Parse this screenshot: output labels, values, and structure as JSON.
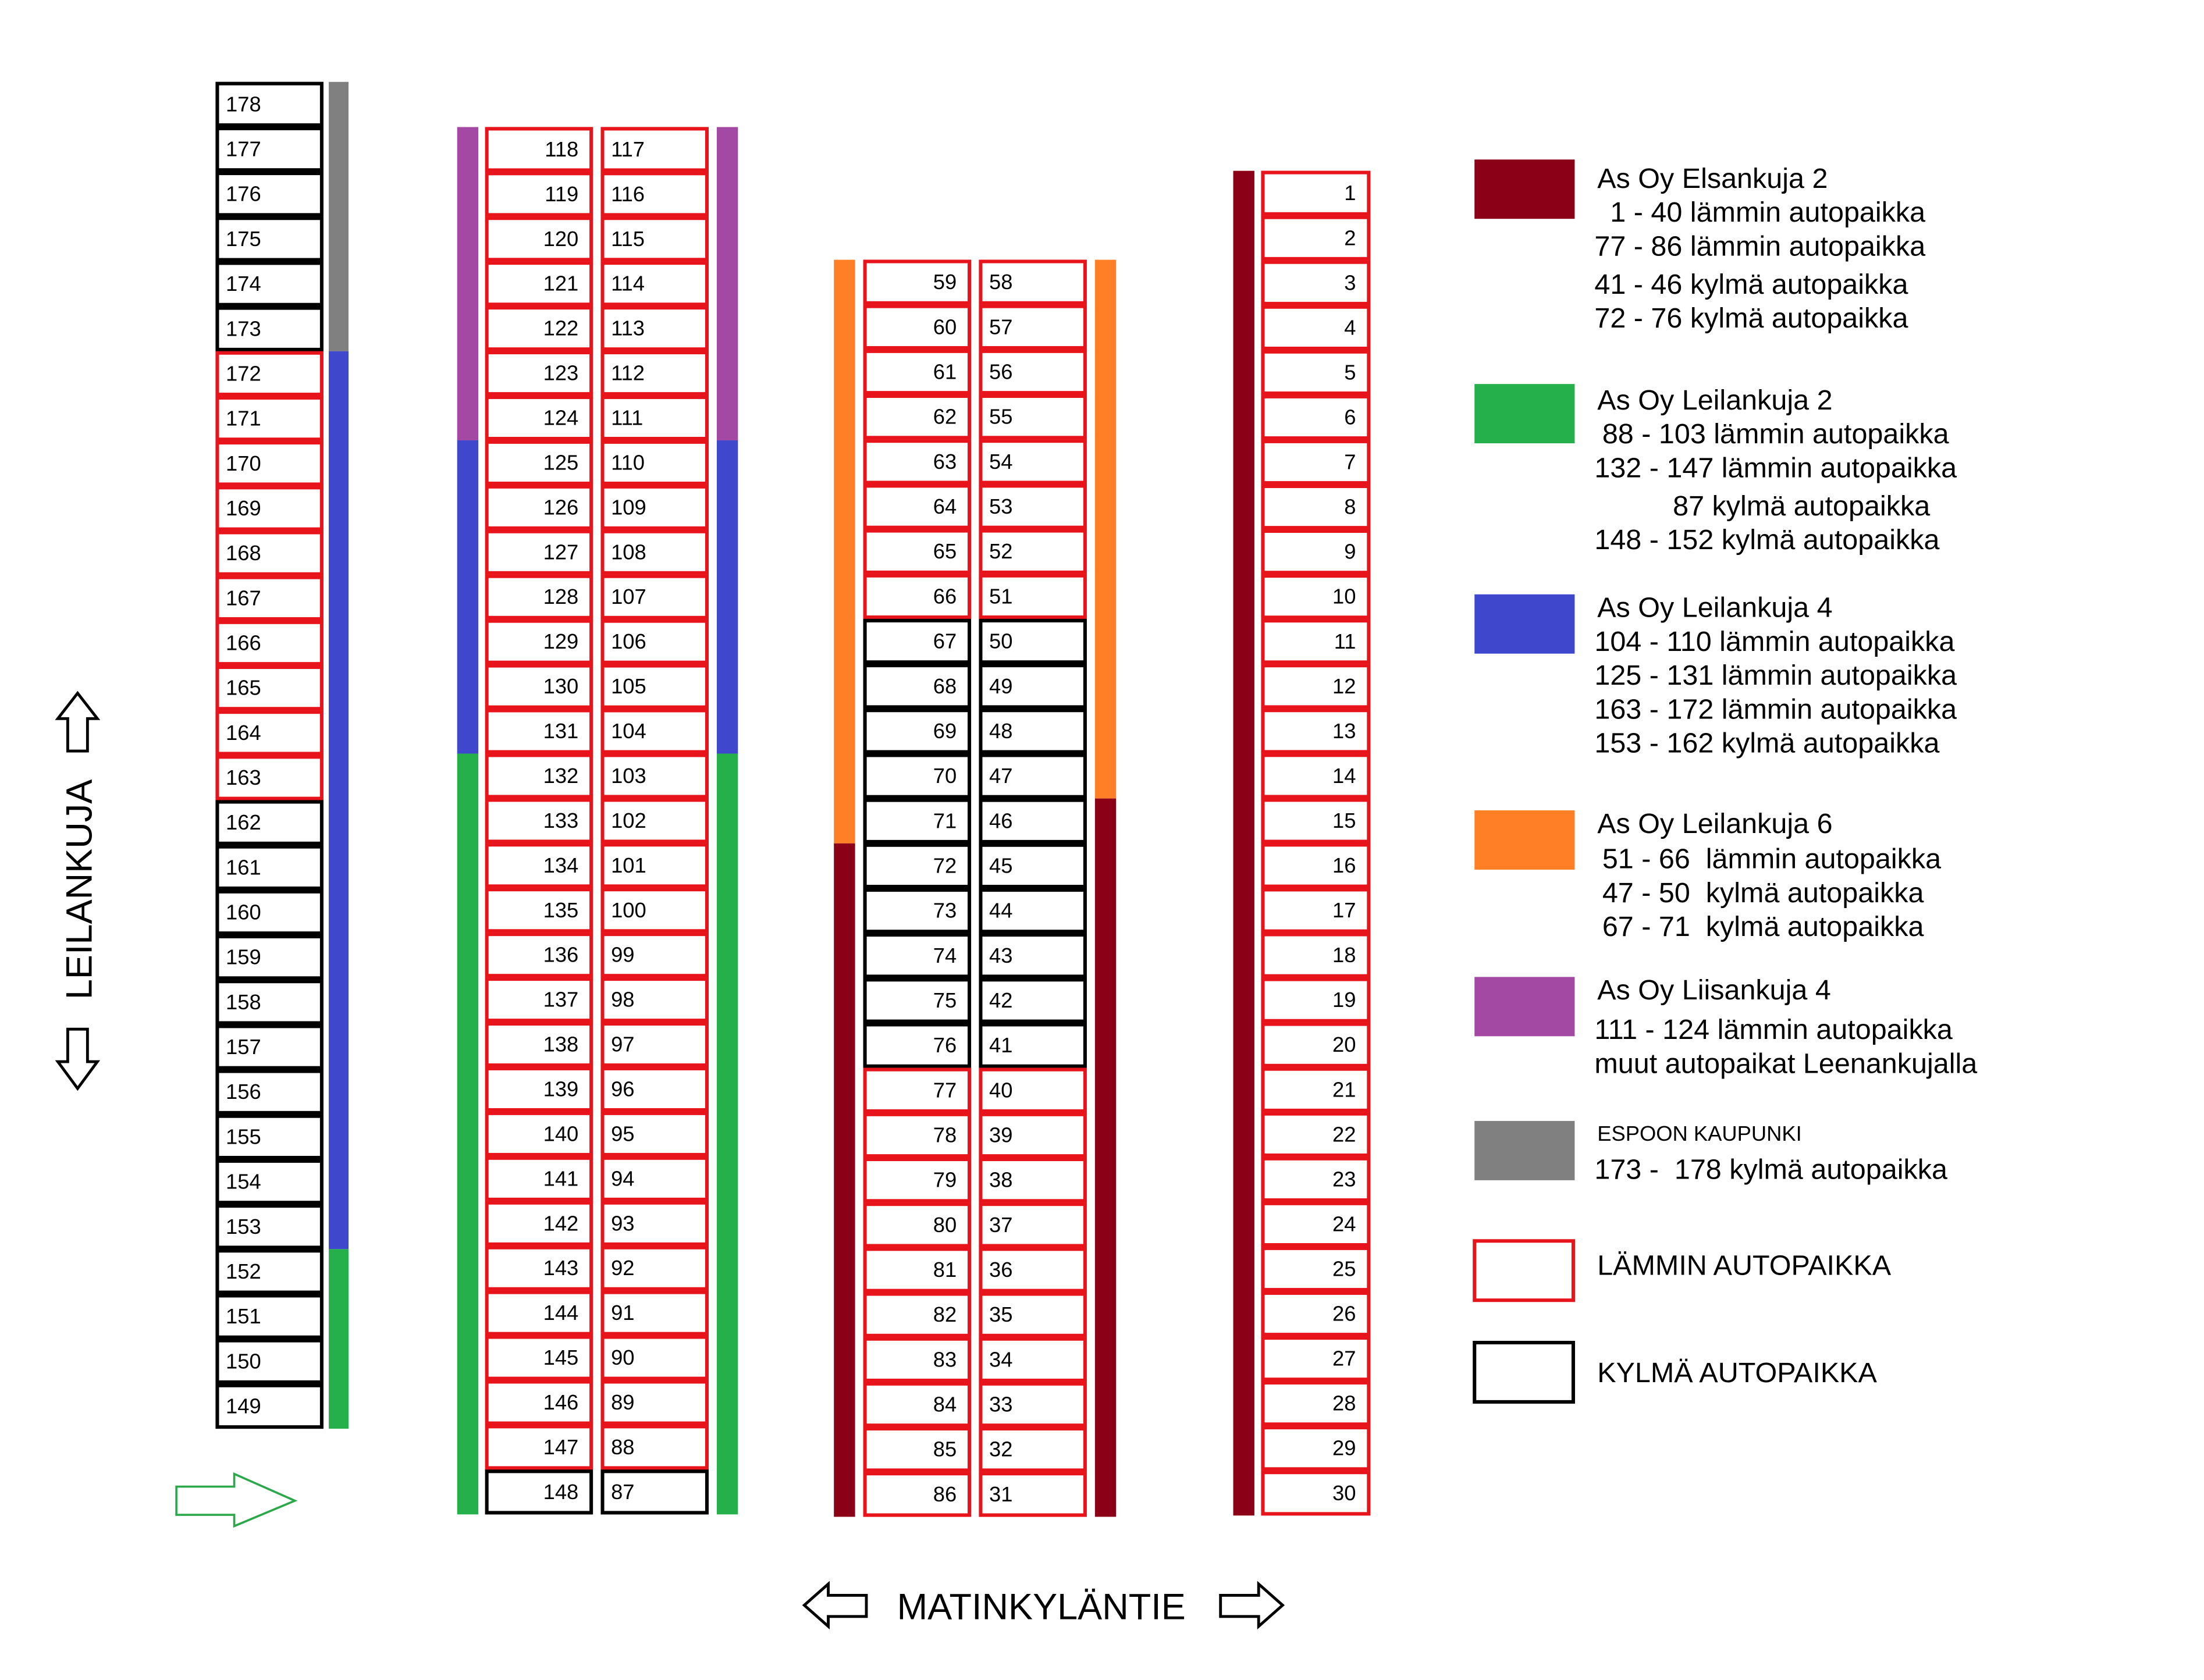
{
  "colors": {
    "warm": "#e8141c",
    "cold": "#000000",
    "arrow_green": "#2aa84a",
    "as_oy_elsankuja_2": "#8b0017",
    "as_oy_leilankuja_2": "#26b04b",
    "as_oy_leilankuja_4": "#3f48cc",
    "as_oy_leilankuja_6": "#ff7f27",
    "as_oy_liisankuja_4": "#a349a4",
    "espoon_kaupunki": "#808080"
  },
  "roads": {
    "left": "LEILANKUJA",
    "bottom": "MATINKYLÄNTIE"
  },
  "parking_columns": [
    {
      "id": "col-a",
      "order": "desc",
      "first": 178,
      "last": 149,
      "align": "left",
      "warm": [
        [
          163,
          172
        ]
      ],
      "bar_side": "right",
      "bars": [
        {
          "owner": "espoon_kaupunki",
          "from": 178,
          "to": 173
        },
        {
          "owner": "as_oy_leilankuja_4",
          "from": 172,
          "to": 153
        },
        {
          "owner": "as_oy_leilankuja_2",
          "from": 152,
          "to": 149
        }
      ]
    },
    {
      "id": "col-b",
      "order": "asc",
      "first": 118,
      "last": 148,
      "align": "right",
      "warm": [
        [
          118,
          147
        ]
      ],
      "bar_side": "left",
      "bars": [
        {
          "owner": "as_oy_liisankuja_4",
          "from": 118,
          "to": 124
        },
        {
          "owner": "as_oy_leilankuja_4",
          "from": 125,
          "to": 131
        },
        {
          "owner": "as_oy_leilankuja_2",
          "from": 132,
          "to": 148
        }
      ]
    },
    {
      "id": "col-c",
      "order": "desc",
      "first": 117,
      "last": 87,
      "align": "left",
      "warm": [
        [
          88,
          117
        ]
      ],
      "bar_side": "right",
      "bars": [
        {
          "owner": "as_oy_liisankuja_4",
          "from": 117,
          "to": 111
        },
        {
          "owner": "as_oy_leilankuja_4",
          "from": 110,
          "to": 104
        },
        {
          "owner": "as_oy_leilankuja_2",
          "from": 103,
          "to": 87
        }
      ]
    },
    {
      "id": "col-d",
      "order": "asc",
      "first": 59,
      "last": 86,
      "align": "right",
      "warm": [
        [
          59,
          66
        ],
        [
          77,
          86
        ]
      ],
      "bar_side": "left",
      "bars": [
        {
          "owner": "as_oy_leilankuja_6",
          "from": 59,
          "to": 71
        },
        {
          "owner": "as_oy_elsankuja_2",
          "from": 72,
          "to": 86
        }
      ]
    },
    {
      "id": "col-e",
      "order": "desc",
      "first": 58,
      "last": 31,
      "align": "left",
      "warm": [
        [
          51,
          58
        ],
        [
          31,
          40
        ]
      ],
      "bar_side": "right",
      "bars": [
        {
          "owner": "as_oy_leilankuja_6",
          "from": 58,
          "to": 47
        },
        {
          "owner": "as_oy_elsankuja_2",
          "from": 46,
          "to": 31
        }
      ]
    },
    {
      "id": "col-f",
      "order": "asc",
      "first": 1,
      "last": 30,
      "align": "right",
      "warm": [
        [
          1,
          30
        ]
      ],
      "bar_side": "left",
      "bars": [
        {
          "owner": "as_oy_elsankuja_2",
          "from": 1,
          "to": 30
        }
      ]
    }
  ],
  "legend": [
    {
      "swatch": "as_oy_elsankuja_2",
      "title": "As Oy Elsankuja 2",
      "lines": [
        "  1 - 40 lämmin autopaikka",
        "77 - 86 lämmin autopaikka",
        "41 - 46 kylmä autopaikka",
        "72 - 76 kylmä autopaikka"
      ]
    },
    {
      "swatch": "as_oy_leilankuja_2",
      "title": "As Oy Leilankuja 2",
      "lines": [
        " 88 - 103 lämmin autopaikka",
        "132 - 147 lämmin autopaikka",
        "          87 kylmä autopaikka",
        "148 - 152 kylmä autopaikka"
      ]
    },
    {
      "swatch": "as_oy_leilankuja_4",
      "title": "As Oy Leilankuja 4",
      "lines": [
        "104 - 110 lämmin autopaikka",
        "125 - 131 lämmin autopaikka",
        "163 - 172 lämmin autopaikka",
        "153 - 162 kylmä autopaikka"
      ]
    },
    {
      "swatch": "as_oy_leilankuja_6",
      "title": "As Oy Leilankuja 6",
      "lines": [
        " 51 - 66  lämmin autopaikka",
        " 47 - 50  kylmä autopaikka",
        " 67 - 71  kylmä autopaikka"
      ]
    },
    {
      "swatch": "as_oy_liisankuja_4",
      "title": "As Oy Liisankuja 4",
      "lines": [
        "111 - 124 lämmin autopaikka",
        "muut autopaikat Leenankujalla"
      ]
    },
    {
      "swatch": "espoon_kaupunki",
      "title": "ESPOON KAUPUNKI",
      "lines": [
        "173 -  178 kylmä autopaikka"
      ]
    },
    {
      "swatch": "warm_outline",
      "title": "LÄMMIN AUTOPAIKKA",
      "lines": []
    },
    {
      "swatch": "cold_outline",
      "title": "KYLMÄ AUTOPAIKKA",
      "lines": []
    }
  ]
}
